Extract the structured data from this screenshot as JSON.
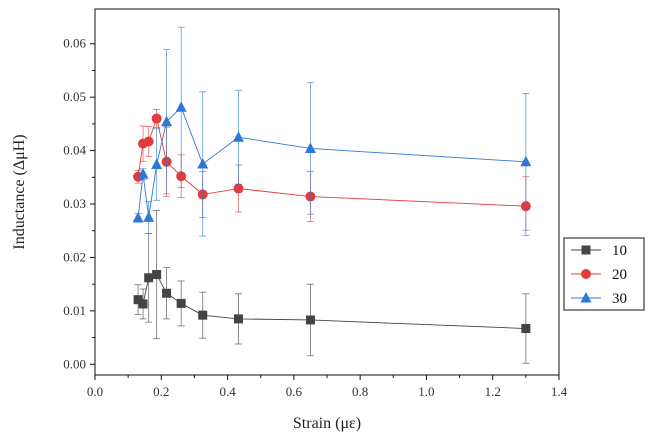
{
  "chart_data": {
    "type": "scatter",
    "xlabel": "Strain (με)",
    "ylabel": "Inductance (ΔμH)",
    "xlim": [
      0.0,
      1.4
    ],
    "ylim": [
      -0.002,
      0.0665
    ],
    "xticks": [
      "0.0",
      "0.2",
      "0.4",
      "0.6",
      "0.8",
      "1.0",
      "1.2",
      "1.4"
    ],
    "yticks": [
      "0.00",
      "0.01",
      "0.02",
      "0.03",
      "0.04",
      "0.05",
      "0.06"
    ],
    "grid": false,
    "legend_position": "right",
    "series": [
      {
        "name": "10",
        "color": "#444444",
        "marker": "square",
        "x": [
          0.13,
          0.145,
          0.162,
          0.186,
          0.216,
          0.26,
          0.325,
          0.433,
          0.65,
          1.3
        ],
        "y": [
          0.0121,
          0.0113,
          0.0162,
          0.0168,
          0.0133,
          0.0114,
          0.0092,
          0.0085,
          0.0083,
          0.0067
        ],
        "err": [
          0.0028,
          0.0028,
          0.0083,
          0.012,
          0.0048,
          0.0042,
          0.0043,
          0.0047,
          0.0067,
          0.0065
        ]
      },
      {
        "name": "20",
        "color": "#e23b3b",
        "marker": "circle",
        "x": [
          0.13,
          0.145,
          0.162,
          0.186,
          0.216,
          0.26,
          0.325,
          0.433,
          0.65,
          1.3
        ],
        "y": [
          0.0351,
          0.0413,
          0.0417,
          0.046,
          0.0379,
          0.0352,
          0.0318,
          0.0329,
          0.0314,
          0.0296
        ],
        "err": [
          0.0012,
          0.0033,
          0.0028,
          0.0017,
          0.0065,
          0.004,
          0.0043,
          0.0044,
          0.0047,
          0.0055
        ]
      },
      {
        "name": "30",
        "color": "#2f77d6",
        "marker": "triangle",
        "x": [
          0.13,
          0.145,
          0.162,
          0.186,
          0.216,
          0.26,
          0.325,
          0.433,
          0.65,
          1.3
        ],
        "y": [
          0.0274,
          0.0356,
          0.0275,
          0.0374,
          0.0454,
          0.0481,
          0.0375,
          0.0425,
          0.0404,
          0.0379
        ],
        "err": [
          0.0008,
          0.001,
          0.003,
          0.0067,
          0.0135,
          0.015,
          0.0135,
          0.0088,
          0.0123,
          0.0128
        ]
      }
    ]
  }
}
